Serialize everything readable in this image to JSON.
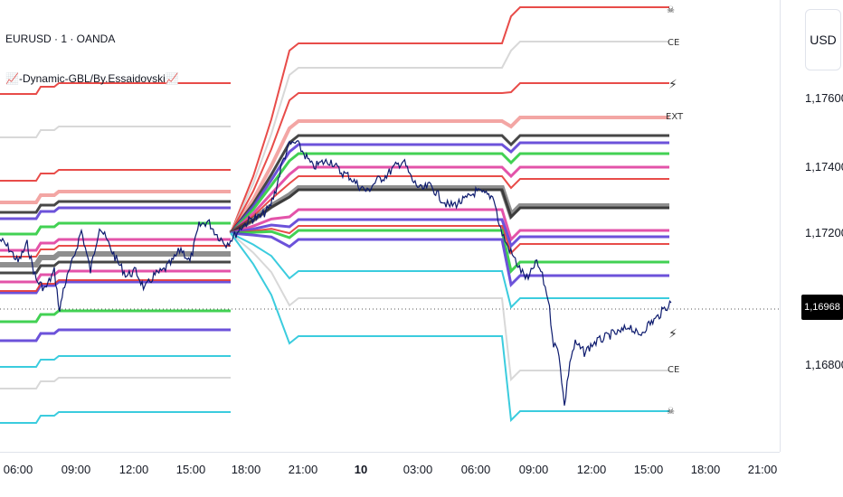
{
  "header": {
    "symbol_title": "EURUSD · 1 · OANDA",
    "indicator_title": "📈-Dynamic-GBL/By.Essaidovski📈"
  },
  "price_axis": {
    "currency": "USD",
    "ticks": [
      {
        "label": "1,17600",
        "value": 1.176
      },
      {
        "label": "1,17400",
        "value": 1.174
      },
      {
        "label": "1,17200",
        "value": 1.172
      },
      {
        "label": "1,16800",
        "value": 1.168
      }
    ],
    "last_price": "1,16968"
  },
  "time_axis": {
    "ticks": [
      {
        "label": "06:00",
        "bold": false
      },
      {
        "label": "09:00",
        "bold": false
      },
      {
        "label": "12:00",
        "bold": false
      },
      {
        "label": "15:00",
        "bold": false
      },
      {
        "label": "18:00",
        "bold": false
      },
      {
        "label": "21:00",
        "bold": false
      },
      {
        "label": "10",
        "bold": true
      },
      {
        "label": "03:00",
        "bold": false
      },
      {
        "label": "06:00",
        "bold": false
      },
      {
        "label": "09:00",
        "bold": false
      },
      {
        "label": "12:00",
        "bold": false
      },
      {
        "label": "15:00",
        "bold": false
      },
      {
        "label": "18:00",
        "bold": false
      },
      {
        "label": "21:00",
        "bold": false
      }
    ]
  },
  "level_labels": [
    {
      "text": "☠",
      "color": "#555555"
    },
    {
      "text": "CE",
      "color": "#555555"
    },
    {
      "text": "⚡",
      "color": "#f2a900"
    },
    {
      "text": "EXT",
      "color": "#555555"
    },
    {
      "text": "CE",
      "color": "#555555"
    },
    {
      "text": "⚡",
      "color": "#f2a900"
    },
    {
      "text": "☠",
      "color": "#555555"
    }
  ],
  "colors": {
    "red": "#e53935",
    "gray": "#c8c8c8",
    "black": "#333333",
    "blue": "#5c3fd6",
    "green": "#2ecc40",
    "magenta": "#e040a0",
    "cyan": "#26c6da",
    "price_line": "#0d1b6e",
    "crosshair": "#555555"
  }
}
